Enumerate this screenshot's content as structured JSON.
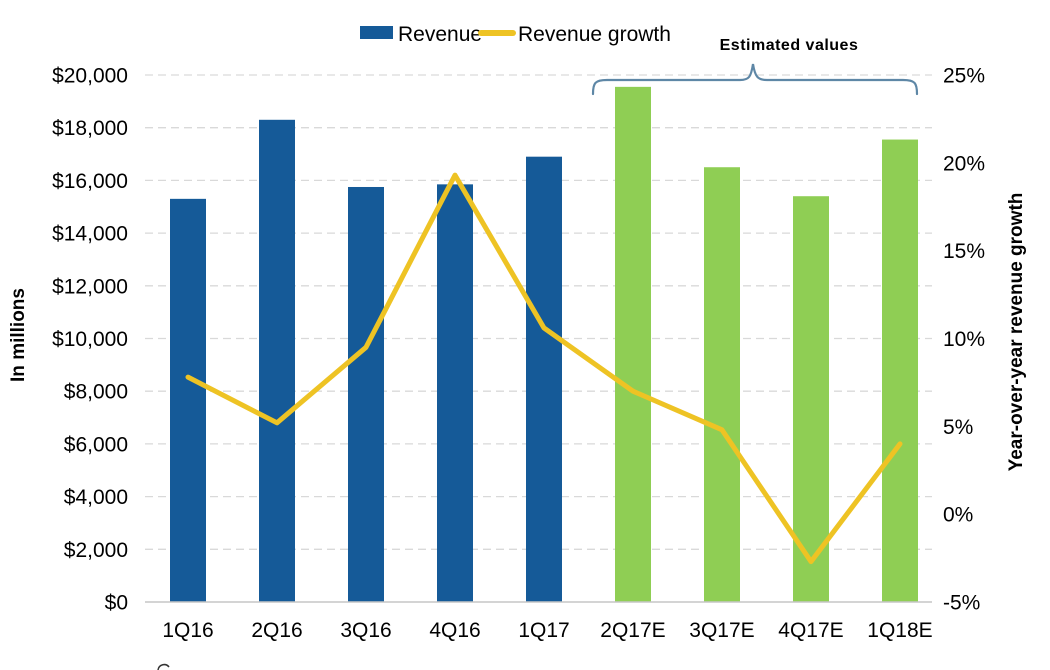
{
  "chart_data": {
    "type": "combo-bar-line",
    "title": "",
    "categories": [
      "1Q16",
      "2Q16",
      "3Q16",
      "4Q16",
      "1Q17",
      "2Q17E",
      "3Q17E",
      "4Q17E",
      "1Q18E"
    ],
    "series": [
      {
        "name": "Revenue",
        "type": "bar",
        "axis": "left",
        "values": [
          15300,
          18300,
          15750,
          15850,
          16900,
          19550,
          16500,
          15400,
          17550
        ],
        "actual_color": "#155A98",
        "estimated_color": "#8FCE54",
        "estimated_from_index": 5
      },
      {
        "name": "Revenue growth",
        "type": "line",
        "axis": "right",
        "values": [
          7.8,
          5.2,
          9.5,
          19.3,
          10.6,
          7.0,
          4.8,
          -2.7,
          4.0
        ],
        "color": "#EEC324"
      }
    ],
    "left_axis": {
      "title": "In millions",
      "min": 0,
      "max": 20000,
      "tick_values": [
        20000,
        18000,
        16000,
        14000,
        12000,
        10000,
        8000,
        6000,
        4000,
        2000,
        0
      ],
      "tick_labels": [
        "$20,000",
        "$18,000",
        "$16,000",
        "$14,000",
        "$12,000",
        "$10,000",
        "$8,000",
        "$6,000",
        "$4,000",
        "$2,000",
        "$0"
      ]
    },
    "right_axis": {
      "title": "Year-over-year revenue growth",
      "min": -5,
      "max": 25,
      "tick_values": [
        25,
        20,
        15,
        10,
        5,
        0,
        -5
      ],
      "tick_labels": [
        "25%",
        "20%",
        "15%",
        "10%",
        "5%",
        "0%",
        "-5%"
      ]
    },
    "legend": [
      {
        "label": "Revenue",
        "swatch": "bar",
        "color": "#155A98"
      },
      {
        "label": "Revenue growth",
        "swatch": "line",
        "color": "#EEC324"
      }
    ],
    "annotation": {
      "label": "Estimated values",
      "from_category": "2Q17E",
      "to_category": "1Q18E",
      "bracket_color": "#5E87A6"
    },
    "grid": "horizontal-dashed",
    "gridline_color": "#D9D9D9",
    "baseline_color": "#C6C6C6",
    "background": "#FFFFFF",
    "legend_position": "top"
  }
}
